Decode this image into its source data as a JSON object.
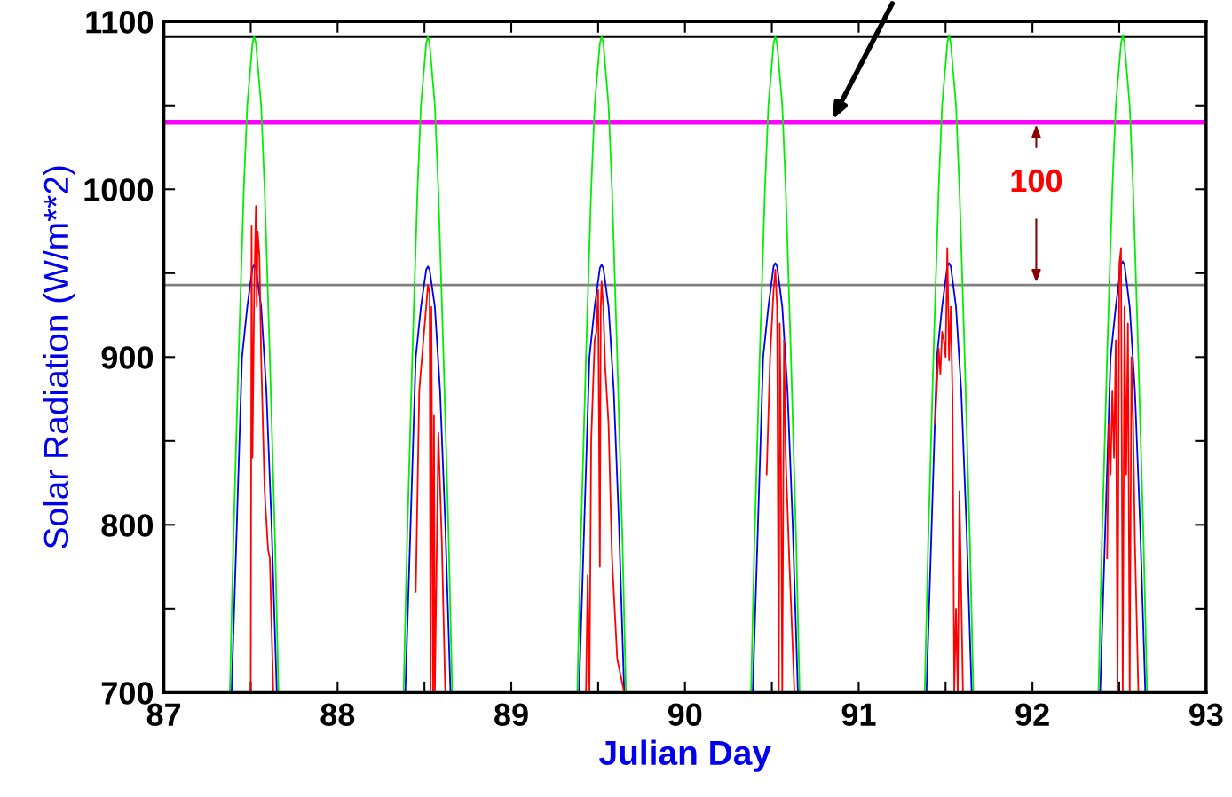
{
  "chart_data": {
    "type": "line",
    "xlabel": "Julian Day",
    "ylabel": "Solar Radiation (W/m**2)",
    "xlim": [
      87,
      93
    ],
    "ylim": [
      700,
      1100
    ],
    "xticks": [
      87,
      {
        "value": 87.5,
        "label": null
      },
      88,
      {
        "value": 88.5,
        "label": null
      },
      89,
      {
        "value": 89.5,
        "label": null
      },
      90,
      {
        "value": 90.5,
        "label": null
      },
      91,
      {
        "value": 91.5,
        "label": null
      },
      92,
      {
        "value": 92.5,
        "label": null
      },
      93
    ],
    "yticks": [
      700,
      {
        "value": 750,
        "label": null
      },
      800,
      {
        "value": 850,
        "label": null
      },
      900,
      {
        "value": 950,
        "label": null
      },
      1000,
      {
        "value": 1050,
        "label": null
      },
      1100
    ],
    "grid": false,
    "legend": false,
    "marker": "none",
    "line_style": "solid",
    "ref_lines": [
      {
        "axis": "y",
        "value": 1091,
        "label": null,
        "color": "#000000"
      },
      {
        "axis": "y",
        "value": 1040,
        "label": null,
        "color": "#ff00ff"
      },
      {
        "axis": "y",
        "value": 943,
        "label": null,
        "color": "#808080"
      }
    ],
    "annotations": [
      "100"
    ],
    "series": [
      {
        "color": "#00ee00",
        "x": [
          87.38,
          87.4,
          87.43,
          87.46,
          87.48,
          87.51,
          87.52,
          87.53,
          87.56,
          87.58,
          87.61,
          87.64,
          87.66,
          null,
          88.38,
          88.4,
          88.43,
          88.46,
          88.48,
          88.51,
          88.52,
          88.53,
          88.56,
          88.58,
          88.61,
          88.64,
          88.66,
          null,
          89.38,
          89.4,
          89.43,
          89.46,
          89.48,
          89.51,
          89.52,
          89.53,
          89.56,
          89.58,
          89.61,
          89.64,
          89.66,
          null,
          90.38,
          90.4,
          90.43,
          90.46,
          90.48,
          90.51,
          90.52,
          90.53,
          90.56,
          90.58,
          90.61,
          90.64,
          90.66,
          null,
          91.38,
          91.4,
          91.43,
          91.46,
          91.48,
          91.51,
          91.52,
          91.53,
          91.56,
          91.58,
          91.61,
          91.64,
          91.66,
          null,
          92.38,
          92.4,
          92.43,
          92.46,
          92.48,
          92.51,
          92.52,
          92.53,
          92.56,
          92.58,
          92.61,
          92.64,
          92.66
        ],
        "values": [
          700,
          790,
          900,
          1000,
          1050,
          1087,
          1091,
          1087,
          1050,
          1000,
          900,
          790,
          700,
          null,
          700,
          790,
          900,
          1000,
          1050,
          1087,
          1091,
          1087,
          1050,
          1000,
          900,
          790,
          700,
          null,
          700,
          790,
          900,
          1000,
          1050,
          1087,
          1091,
          1087,
          1050,
          1000,
          900,
          790,
          700,
          null,
          700,
          790,
          900,
          1000,
          1050,
          1087,
          1091,
          1087,
          1050,
          1000,
          900,
          790,
          700,
          null,
          700,
          790,
          900,
          1000,
          1050,
          1087,
          1092,
          1087,
          1050,
          1000,
          900,
          790,
          700,
          null,
          700,
          790,
          900,
          1000,
          1050,
          1087,
          1092,
          1087,
          1050,
          1000,
          900,
          790,
          700
        ]
      },
      {
        "color": "#0000ee",
        "x": [
          87.39,
          87.42,
          87.45,
          87.48,
          87.51,
          87.52,
          87.53,
          87.56,
          87.59,
          87.62,
          87.65,
          null,
          88.39,
          88.42,
          88.45,
          88.48,
          88.51,
          88.52,
          88.53,
          88.56,
          88.59,
          88.62,
          88.65,
          null,
          89.39,
          89.42,
          89.45,
          89.48,
          89.51,
          89.52,
          89.53,
          89.56,
          89.59,
          89.62,
          89.65,
          null,
          90.39,
          90.42,
          90.45,
          90.48,
          90.51,
          90.52,
          90.53,
          90.56,
          90.59,
          90.62,
          90.65,
          null,
          91.39,
          91.42,
          91.45,
          91.48,
          91.51,
          91.52,
          91.53,
          91.56,
          91.59,
          91.62,
          91.65,
          null,
          92.39,
          92.42,
          92.45,
          92.48,
          92.51,
          92.52,
          92.53,
          92.56,
          92.59,
          92.62,
          92.65
        ],
        "values": [
          700,
          800,
          900,
          930,
          953,
          955,
          953,
          930,
          880,
          800,
          700,
          null,
          700,
          800,
          900,
          930,
          952,
          954,
          952,
          930,
          880,
          800,
          700,
          null,
          700,
          800,
          900,
          930,
          953,
          955,
          953,
          930,
          880,
          800,
          700,
          null,
          700,
          800,
          900,
          930,
          954,
          956,
          954,
          930,
          880,
          800,
          700,
          null,
          700,
          800,
          900,
          930,
          954,
          956,
          954,
          930,
          880,
          800,
          700,
          null,
          700,
          800,
          900,
          930,
          955,
          957,
          955,
          930,
          880,
          800,
          700
        ]
      },
      {
        "color": "#ff0000",
        "x": [
          87.5,
          87.505,
          87.51,
          87.52,
          87.53,
          87.535,
          87.54,
          87.55,
          87.56,
          87.58,
          87.6,
          87.61,
          87.63,
          null,
          88.45,
          88.47,
          88.49,
          88.51,
          88.52,
          88.53,
          88.535,
          88.54,
          88.55,
          88.555,
          88.56,
          88.58,
          88.6,
          88.62,
          null,
          89.43,
          89.44,
          89.45,
          89.46,
          89.48,
          89.49,
          89.5,
          89.51,
          89.515,
          89.52,
          89.53,
          89.54,
          89.56,
          89.58,
          89.61,
          89.65,
          null,
          90.47,
          90.49,
          90.51,
          90.52,
          90.53,
          90.54,
          90.545,
          90.55,
          90.56,
          90.57,
          90.58,
          90.6,
          90.63,
          null,
          91.44,
          91.46,
          91.47,
          91.48,
          91.49,
          91.5,
          91.51,
          91.52,
          91.53,
          91.54,
          91.55,
          91.56,
          91.57,
          91.58,
          91.6,
          null,
          92.43,
          92.44,
          92.45,
          92.46,
          92.47,
          92.48,
          92.49,
          92.5,
          92.51,
          92.52,
          92.53,
          92.54,
          92.55,
          92.56,
          92.57,
          92.58,
          92.59,
          92.61
        ],
        "values": [
          700,
          978,
          840,
          940,
          990,
          930,
          975,
          960,
          900,
          820,
          785,
          780,
          700,
          null,
          760,
          880,
          905,
          930,
          943,
          938,
          700,
          930,
          700,
          865,
          700,
          855,
          790,
          700,
          null,
          700,
          770,
          700,
          850,
          910,
          915,
          940,
          775,
          930,
          945,
          930,
          895,
          860,
          780,
          720,
          700,
          null,
          830,
          900,
          940,
          952,
          930,
          700,
          920,
          880,
          700,
          910,
          840,
          780,
          700,
          null,
          860,
          905,
          890,
          915,
          910,
          900,
          965,
          898,
          930,
          875,
          700,
          750,
          700,
          820,
          700,
          null,
          780,
          860,
          830,
          880,
          840,
          910,
          700,
          955,
          965,
          700,
          930,
          830,
          920,
          700,
          900,
          860,
          790,
          700
        ]
      }
    ]
  }
}
